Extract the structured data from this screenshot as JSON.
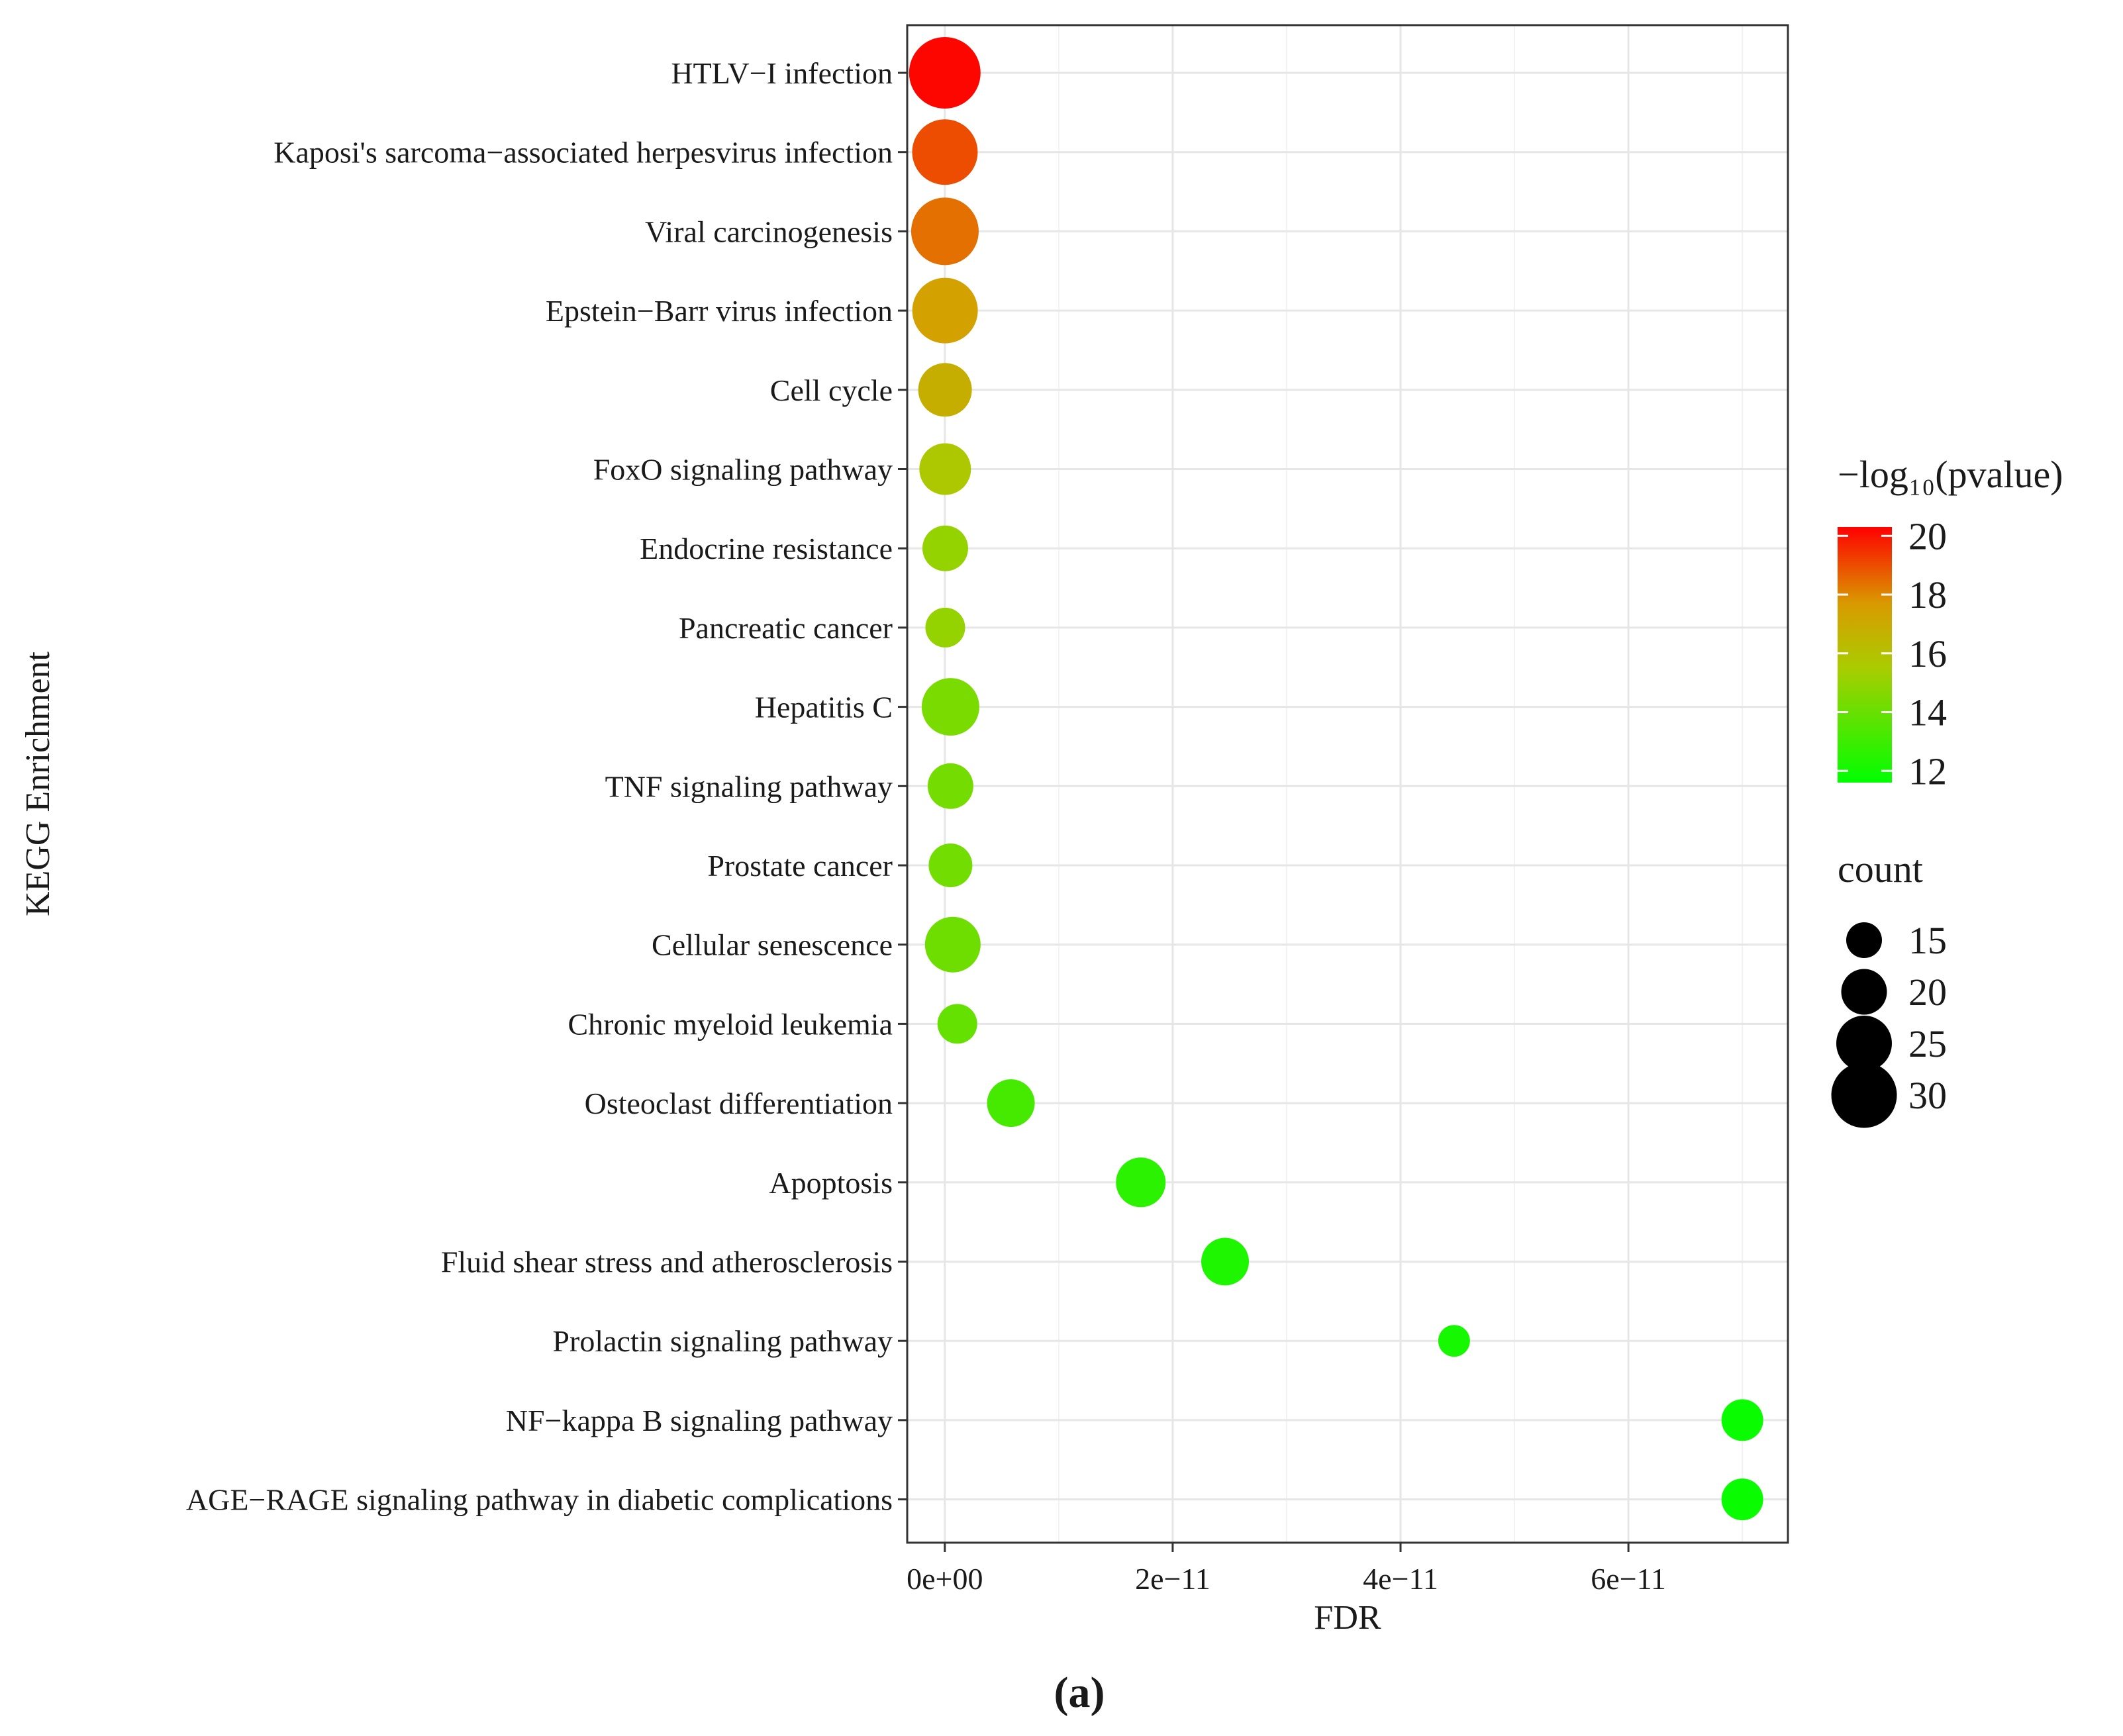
{
  "chart_data": {
    "type": "scatter",
    "panel_label": "(a)",
    "xlabel": "FDR",
    "ylabel": "KEGG Enrichment",
    "xlim": [
      -3.3e-12,
      7.4e-11
    ],
    "x_ticks": [
      0,
      2e-11,
      4e-11,
      6e-11
    ],
    "x_tick_labels": [
      "0e+00",
      "2e−11",
      "4e−11",
      "6e−11"
    ],
    "grid": true,
    "color_legend": {
      "title": "−log₁₀(pvalue)",
      "range": [
        11.6,
        20.3
      ],
      "ticks": [
        20,
        18,
        16,
        14,
        12
      ],
      "low_color": "#00ff00",
      "high_color": "#ff0000"
    },
    "size_legend": {
      "title": "count",
      "values": [
        15,
        20,
        25,
        30
      ]
    },
    "legend_position": "right",
    "points": [
      {
        "term": "HTLV−I infection",
        "fdr": 0.0,
        "neglog10p": 20.2,
        "count": 33
      },
      {
        "term": "Kaposi's sarcoma−associated herpesvirus infection",
        "fdr": 1e-14,
        "neglog10p": 19.0,
        "count": 30
      },
      {
        "term": "Viral carcinogenesis",
        "fdr": 1e-14,
        "neglog10p": 18.4,
        "count": 31
      },
      {
        "term": "Epstein−Barr virus infection",
        "fdr": 2e-14,
        "neglog10p": 17.4,
        "count": 30
      },
      {
        "term": "Cell cycle",
        "fdr": 2e-14,
        "neglog10p": 16.8,
        "count": 24
      },
      {
        "term": "FoxO signaling pathway",
        "fdr": 3e-14,
        "neglog10p": 15.7,
        "count": 23
      },
      {
        "term": "Endocrine resistance",
        "fdr": 4e-14,
        "neglog10p": 15.0,
        "count": 20
      },
      {
        "term": "Pancreatic cancer",
        "fdr": 4e-14,
        "neglog10p": 15.0,
        "count": 17
      },
      {
        "term": "Hepatitis C",
        "fdr": 5e-13,
        "neglog10p": 14.4,
        "count": 26
      },
      {
        "term": "TNF signaling pathway",
        "fdr": 5e-13,
        "neglog10p": 14.3,
        "count": 20
      },
      {
        "term": "Prostate cancer",
        "fdr": 5e-13,
        "neglog10p": 14.2,
        "count": 19
      },
      {
        "term": "Cellular senescence",
        "fdr": 7e-13,
        "neglog10p": 14.1,
        "count": 25
      },
      {
        "term": "Chronic myeloid leukemia",
        "fdr": 1.1e-12,
        "neglog10p": 13.9,
        "count": 17
      },
      {
        "term": "Osteoclast differentiation",
        "fdr": 5.8e-12,
        "neglog10p": 13.2,
        "count": 21
      },
      {
        "term": "Apoptosis",
        "fdr": 1.72e-11,
        "neglog10p": 12.6,
        "count": 22
      },
      {
        "term": "Fluid shear stress and atherosclerosis",
        "fdr": 2.46e-11,
        "neglog10p": 12.3,
        "count": 21
      },
      {
        "term": "Prolactin signaling pathway",
        "fdr": 4.47e-11,
        "neglog10p": 12.1,
        "count": 13
      },
      {
        "term": "NF−kappa B signaling pathway",
        "fdr": 7e-11,
        "neglog10p": 11.8,
        "count": 18
      },
      {
        "term": "AGE−RAGE signaling pathway in diabetic complications",
        "fdr": 7e-11,
        "neglog10p": 11.8,
        "count": 18
      }
    ]
  }
}
